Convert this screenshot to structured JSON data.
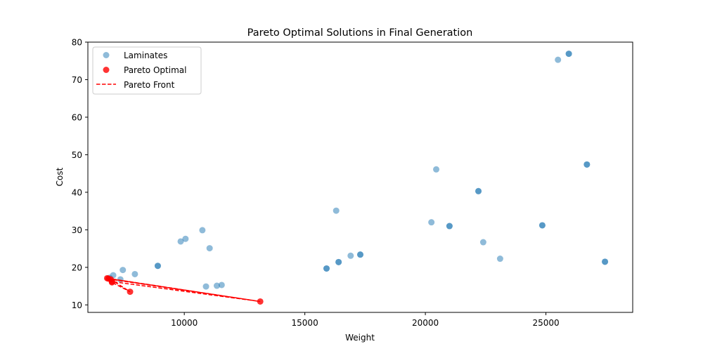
{
  "chart_data": {
    "type": "scatter",
    "title": "Pareto Optimal Solutions in Final Generation",
    "xlabel": "Weight",
    "ylabel": "Cost",
    "xlim": [
      6000,
      28600
    ],
    "ylim": [
      8,
      80
    ],
    "xticks": [
      10000,
      15000,
      20000,
      25000
    ],
    "yticks": [
      10,
      20,
      30,
      40,
      50,
      60,
      70,
      80
    ],
    "grid": false,
    "legend_position": "top-left",
    "legend": [
      "Laminates",
      "Pareto Optimal",
      "Pareto Front"
    ],
    "colors": {
      "laminates": "#1f77b4",
      "pareto": "#ff0000"
    },
    "series": [
      {
        "name": "Laminates",
        "marker": "circle",
        "alpha": 0.5,
        "points": [
          [
            6900,
            17.2
          ],
          [
            7050,
            17.9
          ],
          [
            7350,
            16.8
          ],
          [
            7450,
            19.3
          ],
          [
            7950,
            18.2
          ],
          [
            8900,
            20.4
          ],
          [
            8900,
            20.4
          ],
          [
            9850,
            26.9
          ],
          [
            10050,
            27.6
          ],
          [
            10750,
            29.9
          ],
          [
            10900,
            14.9
          ],
          [
            11050,
            25.1
          ],
          [
            11350,
            15.1
          ],
          [
            11550,
            15.3
          ],
          [
            15900,
            19.7
          ],
          [
            15900,
            19.7
          ],
          [
            16300,
            35.1
          ],
          [
            16400,
            21.4
          ],
          [
            16400,
            21.4
          ],
          [
            16900,
            23.1
          ],
          [
            17300,
            23.4
          ],
          [
            17300,
            23.4
          ],
          [
            20250,
            32.0
          ],
          [
            20450,
            46.1
          ],
          [
            21000,
            31.0
          ],
          [
            21000,
            31.0
          ],
          [
            22200,
            40.3
          ],
          [
            22200,
            40.3
          ],
          [
            22400,
            26.7
          ],
          [
            23100,
            22.3
          ],
          [
            24850,
            31.2
          ],
          [
            24850,
            31.2
          ],
          [
            25500,
            75.3
          ],
          [
            25950,
            76.9
          ],
          [
            25950,
            76.9
          ],
          [
            26700,
            47.4
          ],
          [
            26700,
            47.4
          ],
          [
            27450,
            21.5
          ],
          [
            27450,
            21.5
          ]
        ]
      },
      {
        "name": "Pareto Optimal",
        "marker": "circle",
        "alpha": 0.8,
        "points": [
          [
            6800,
            17.1
          ],
          [
            6850,
            17.0
          ],
          [
            6950,
            16.8
          ],
          [
            7000,
            16.2
          ],
          [
            7000,
            16.0
          ],
          [
            7750,
            13.5
          ],
          [
            13150,
            10.9
          ]
        ]
      },
      {
        "name": "Pareto Front",
        "style": "dashed",
        "points": [
          [
            6800,
            17.1
          ],
          [
            13150,
            10.9
          ],
          [
            6850,
            17.0
          ],
          [
            7000,
            16.2
          ],
          [
            13150,
            10.9
          ],
          [
            6950,
            16.8
          ],
          [
            7750,
            13.5
          ],
          [
            7000,
            16.0
          ]
        ]
      }
    ]
  }
}
